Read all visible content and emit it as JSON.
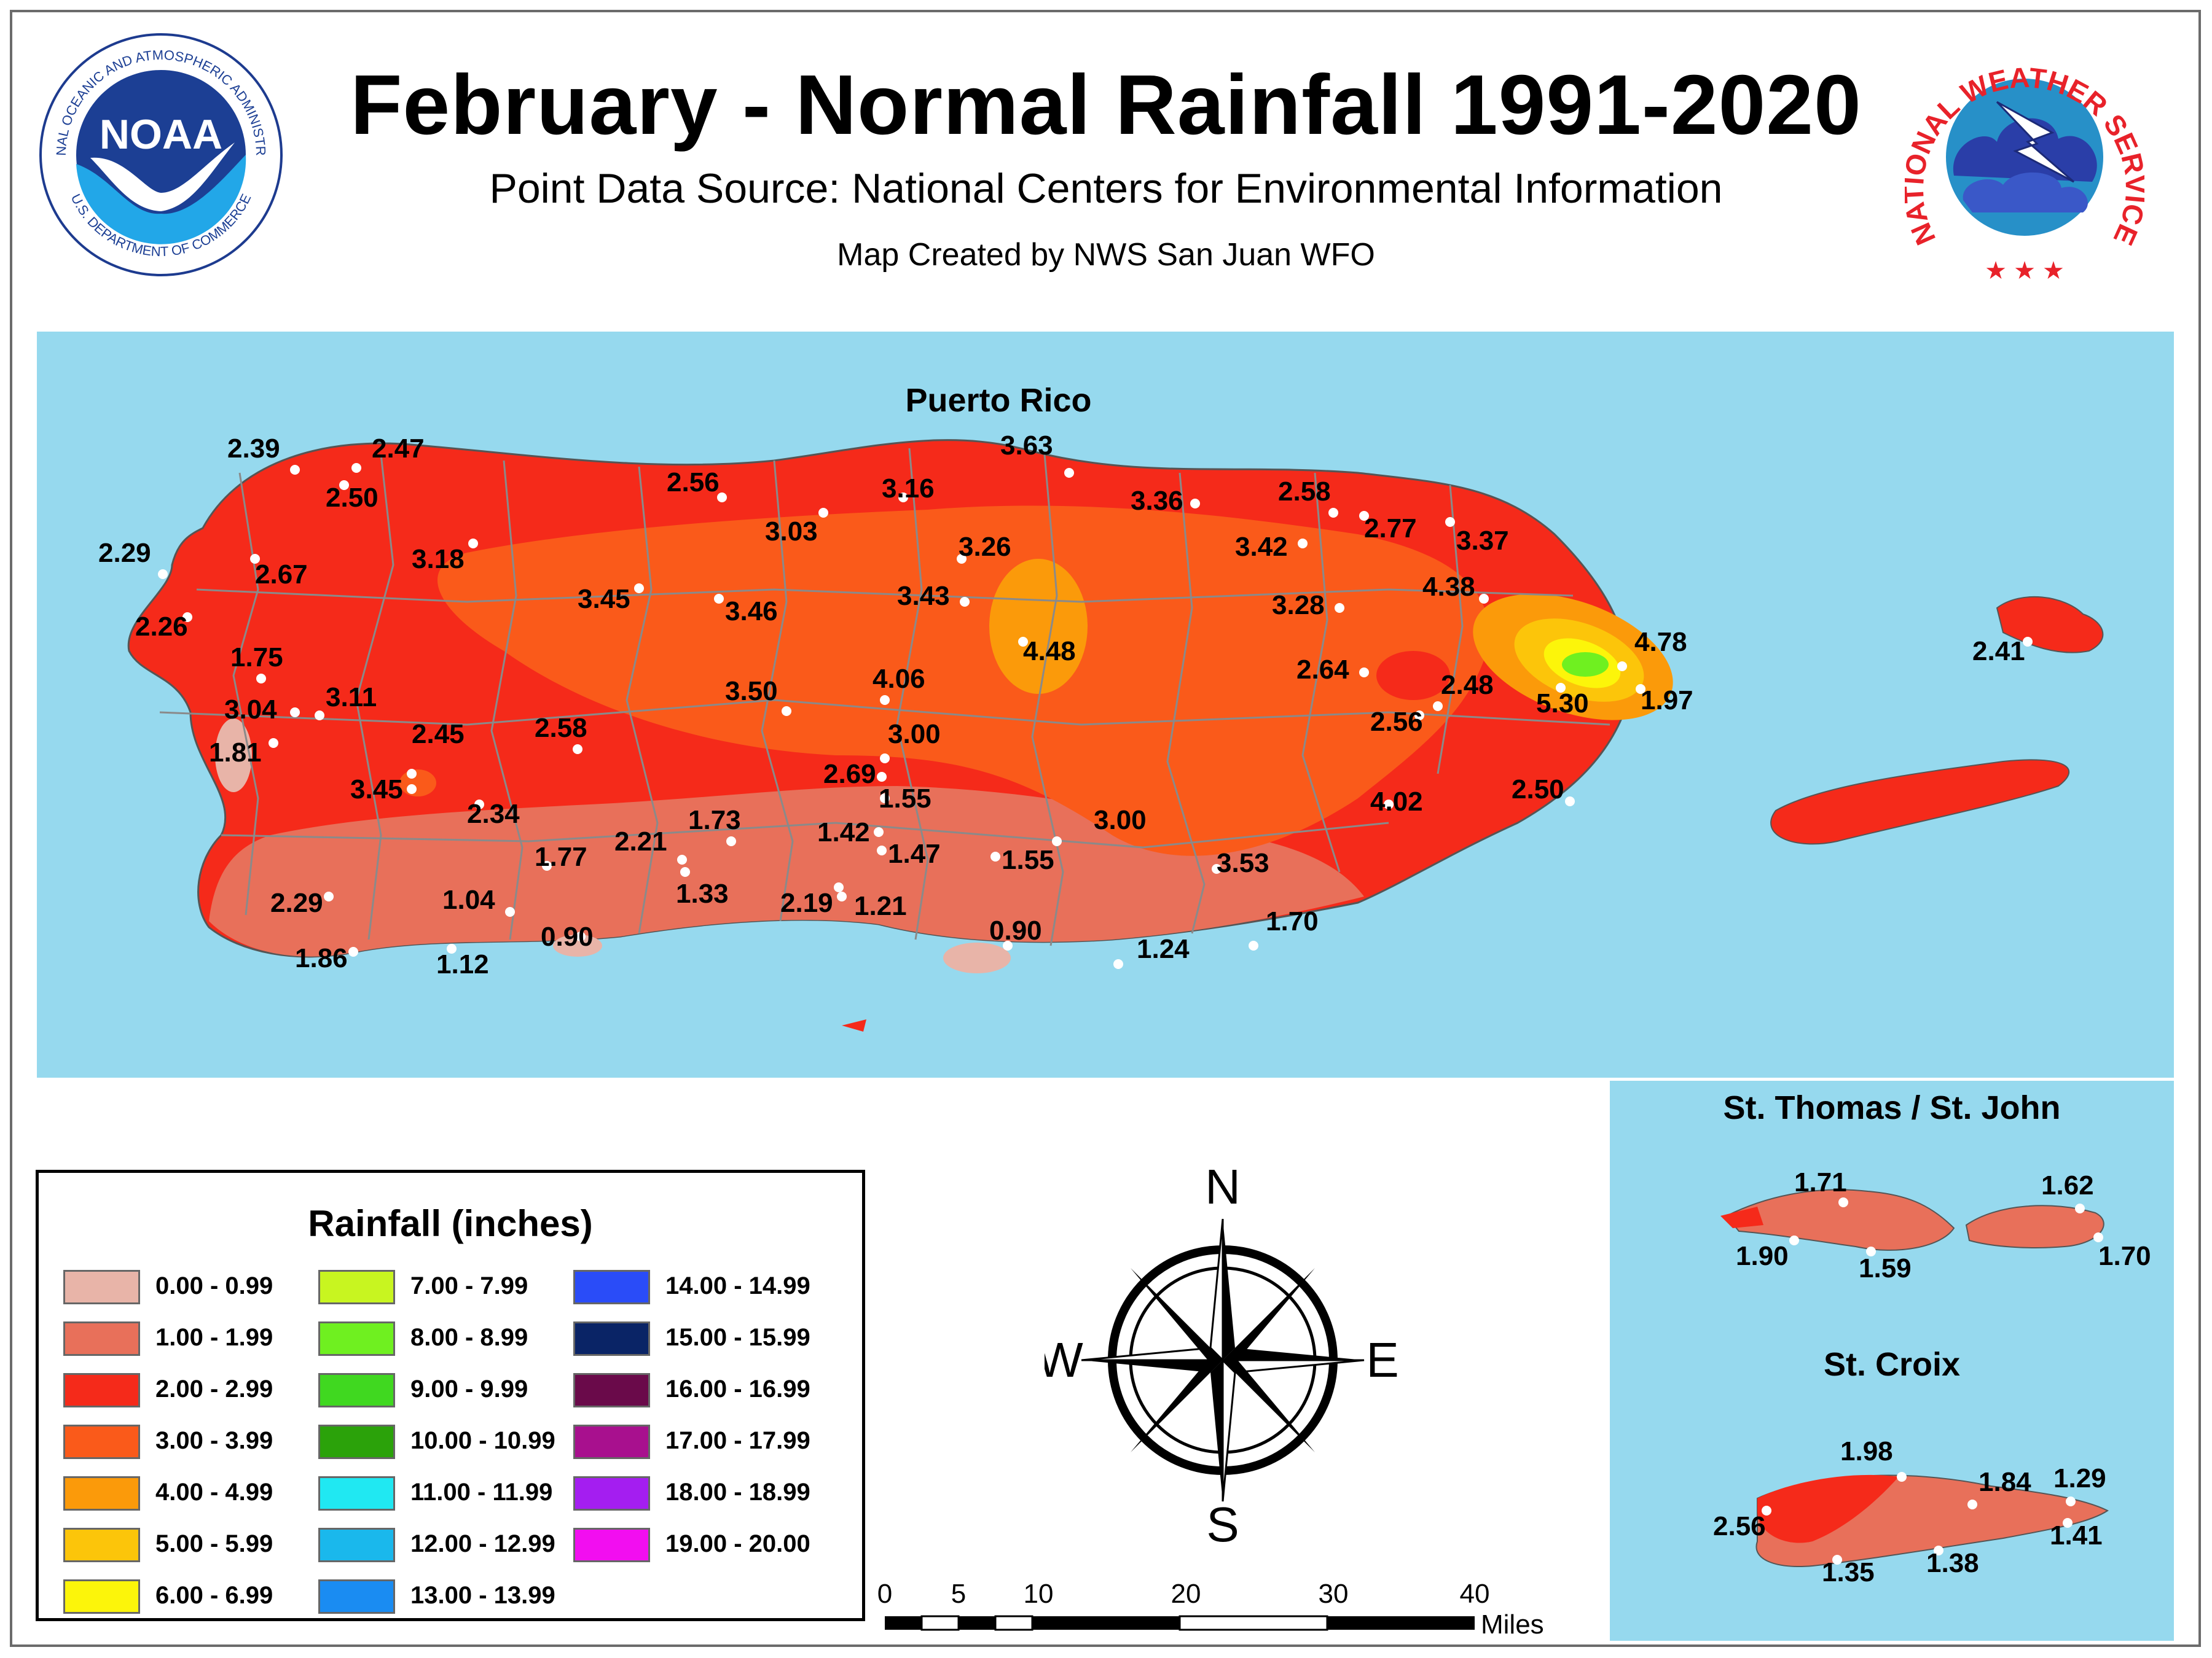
{
  "title": "February - Normal Rainfall 1991-2020",
  "subtitle": "Point Data Source: National Centers for Environmental Information",
  "credit": "Map Created by NWS San Juan WFO",
  "logos": {
    "noaa": {
      "center_text": "NOAA",
      "ring_top": "NATIONAL OCEANIC AND ATMOSPHERIC ADMINISTRATION",
      "ring_bottom": "U.S. DEPARTMENT OF COMMERCE"
    },
    "nws": {
      "ring_text": "NATIONAL WEATHER SERVICE"
    }
  },
  "regions": {
    "puerto_rico": "Puerto Rico",
    "st_thomas": "St. Thomas / St. John",
    "st_croix": "St. Croix"
  },
  "stations": {
    "puerto_rico": [
      "2.39",
      "2.47",
      "2.50",
      "2.29",
      "2.67",
      "2.26",
      "1.75",
      "3.04",
      "3.11",
      "1.81",
      "2.45",
      "3.45",
      "2.34",
      "2.58",
      "3.18",
      "3.45",
      "3.46",
      "2.56",
      "3.03",
      "3.16",
      "3.63",
      "3.26",
      "3.43",
      "3.36",
      "2.58",
      "2.77",
      "3.42",
      "3.37",
      "3.28",
      "4.38",
      "4.48",
      "4.78",
      "5.30",
      "1.97",
      "2.41",
      "2.64",
      "2.48",
      "2.56",
      "3.50",
      "4.06",
      "3.00",
      "2.69",
      "1.55",
      "1.42",
      "1.47",
      "1.55",
      "2.21",
      "1.73",
      "1.77",
      "1.33",
      "2.19",
      "1.21",
      "1.04",
      "0.90",
      "1.12",
      "1.86",
      "2.29",
      "0.90",
      "1.24",
      "1.70",
      "3.00",
      "3.53",
      "4.02",
      "2.50"
    ],
    "st_thomas": [
      "1.71",
      "1.62",
      "1.90",
      "1.59",
      "1.70"
    ],
    "st_croix": [
      "1.98",
      "1.84",
      "1.29",
      "2.56",
      "1.41",
      "1.35",
      "1.38"
    ]
  },
  "legend": {
    "title": "Rainfall (inches)",
    "items": [
      {
        "label": "0.00 - 0.99",
        "color": "#e8b4a8"
      },
      {
        "label": "1.00 - 1.99",
        "color": "#e8705a"
      },
      {
        "label": "2.00 - 2.99",
        "color": "#f52a1a"
      },
      {
        "label": "3.00 - 3.99",
        "color": "#fa5a1a"
      },
      {
        "label": "4.00 - 4.99",
        "color": "#fb9a0a"
      },
      {
        "label": "5.00 - 5.99",
        "color": "#fcc50a"
      },
      {
        "label": "6.00 - 6.99",
        "color": "#fcf50a"
      },
      {
        "label": "7.00 - 7.99",
        "color": "#c8f520"
      },
      {
        "label": "8.00 - 8.99",
        "color": "#6ff020"
      },
      {
        "label": "9.00 - 9.99",
        "color": "#40d820"
      },
      {
        "label": "10.00 - 10.99",
        "color": "#2ba20a"
      },
      {
        "label": "11.00 - 11.99",
        "color": "#20e8f2"
      },
      {
        "label": "12.00 - 12.99",
        "color": "#1ab8ec"
      },
      {
        "label": "13.00 - 13.99",
        "color": "#1a8cf2"
      },
      {
        "label": "14.00 - 14.99",
        "color": "#2a4cf8"
      },
      {
        "label": "15.00 - 15.99",
        "color": "#0a2466"
      },
      {
        "label": "16.00 - 16.99",
        "color": "#6a0a4a"
      },
      {
        "label": "17.00 - 17.99",
        "color": "#a8108e"
      },
      {
        "label": "18.00 - 18.99",
        "color": "#a41ef0"
      },
      {
        "label": "19.00 - 20.00",
        "color": "#f20ef0"
      }
    ]
  },
  "compass": {
    "n": "N",
    "s": "S",
    "e": "E",
    "w": "W"
  },
  "scale": {
    "ticks": [
      "0",
      "5",
      "10",
      "20",
      "30",
      "40"
    ],
    "unit": "Miles"
  },
  "colors": {
    "ocean": "#96d9ee",
    "county_lines": "#8a8a8a"
  }
}
